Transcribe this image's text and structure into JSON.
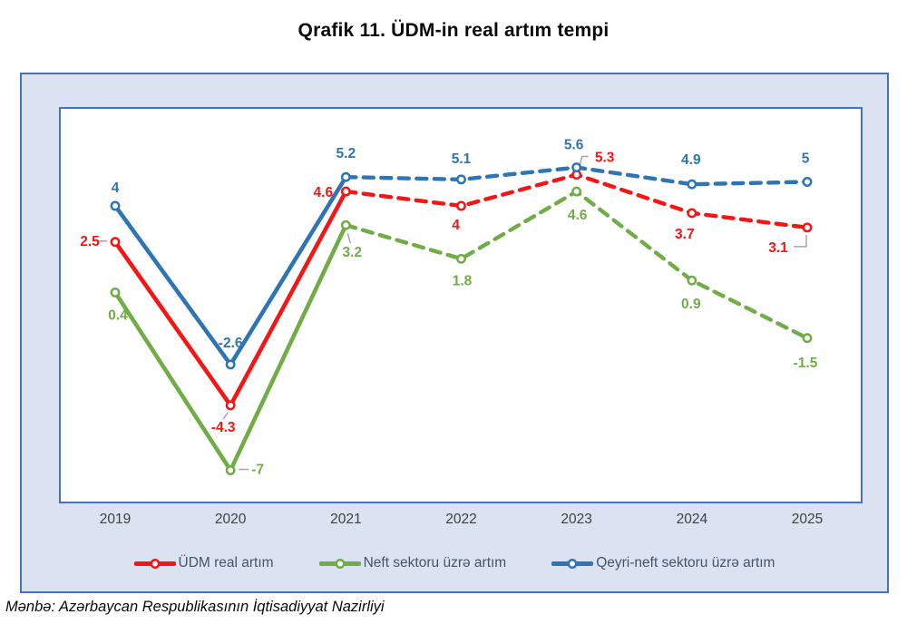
{
  "title": "Qrafik 11. ÜDM-in real artım tempi",
  "source": "Mənbə: Azərbaycan Respublikasının İqtisadiyyat Nazirliyi",
  "colors": {
    "frame_border": "#4472c4",
    "frame_fill": "#dbe3f3",
    "plot_fill": "#ffffff",
    "axis_label": "#404040",
    "legend_text": "#44546a",
    "leader_line": "#a6a6a6"
  },
  "chart_data": {
    "type": "line",
    "title": "Qrafik 11. ÜDM-in real artım tempi",
    "categories": [
      "2019",
      "2020",
      "2021",
      "2022",
      "2023",
      "2024",
      "2025"
    ],
    "series": [
      {
        "name": "ÜDM real artım",
        "color": "#f51515",
        "values": [
          2.5,
          -4.3,
          4.6,
          4,
          5.3,
          3.7,
          3.1
        ]
      },
      {
        "name": "Neft sektoru üzrə artım",
        "color": "#70ad47",
        "values": [
          0.4,
          -7,
          3.2,
          1.8,
          4.6,
          0.9,
          -1.5
        ]
      },
      {
        "name": "Qeyri-neft sektoru üzrə artım",
        "color": "#2e75b6",
        "values": [
          4,
          -2.6,
          5.2,
          5.1,
          5.6,
          4.9,
          5
        ]
      }
    ],
    "line_style_note": "solid 2019-2021, dashed (forecast) 2021-2025",
    "data_labels": true,
    "grid": false,
    "legend_position": "bottom",
    "xlabel": "",
    "ylabel": "",
    "ylim": [
      -8.4,
      8.1
    ]
  }
}
